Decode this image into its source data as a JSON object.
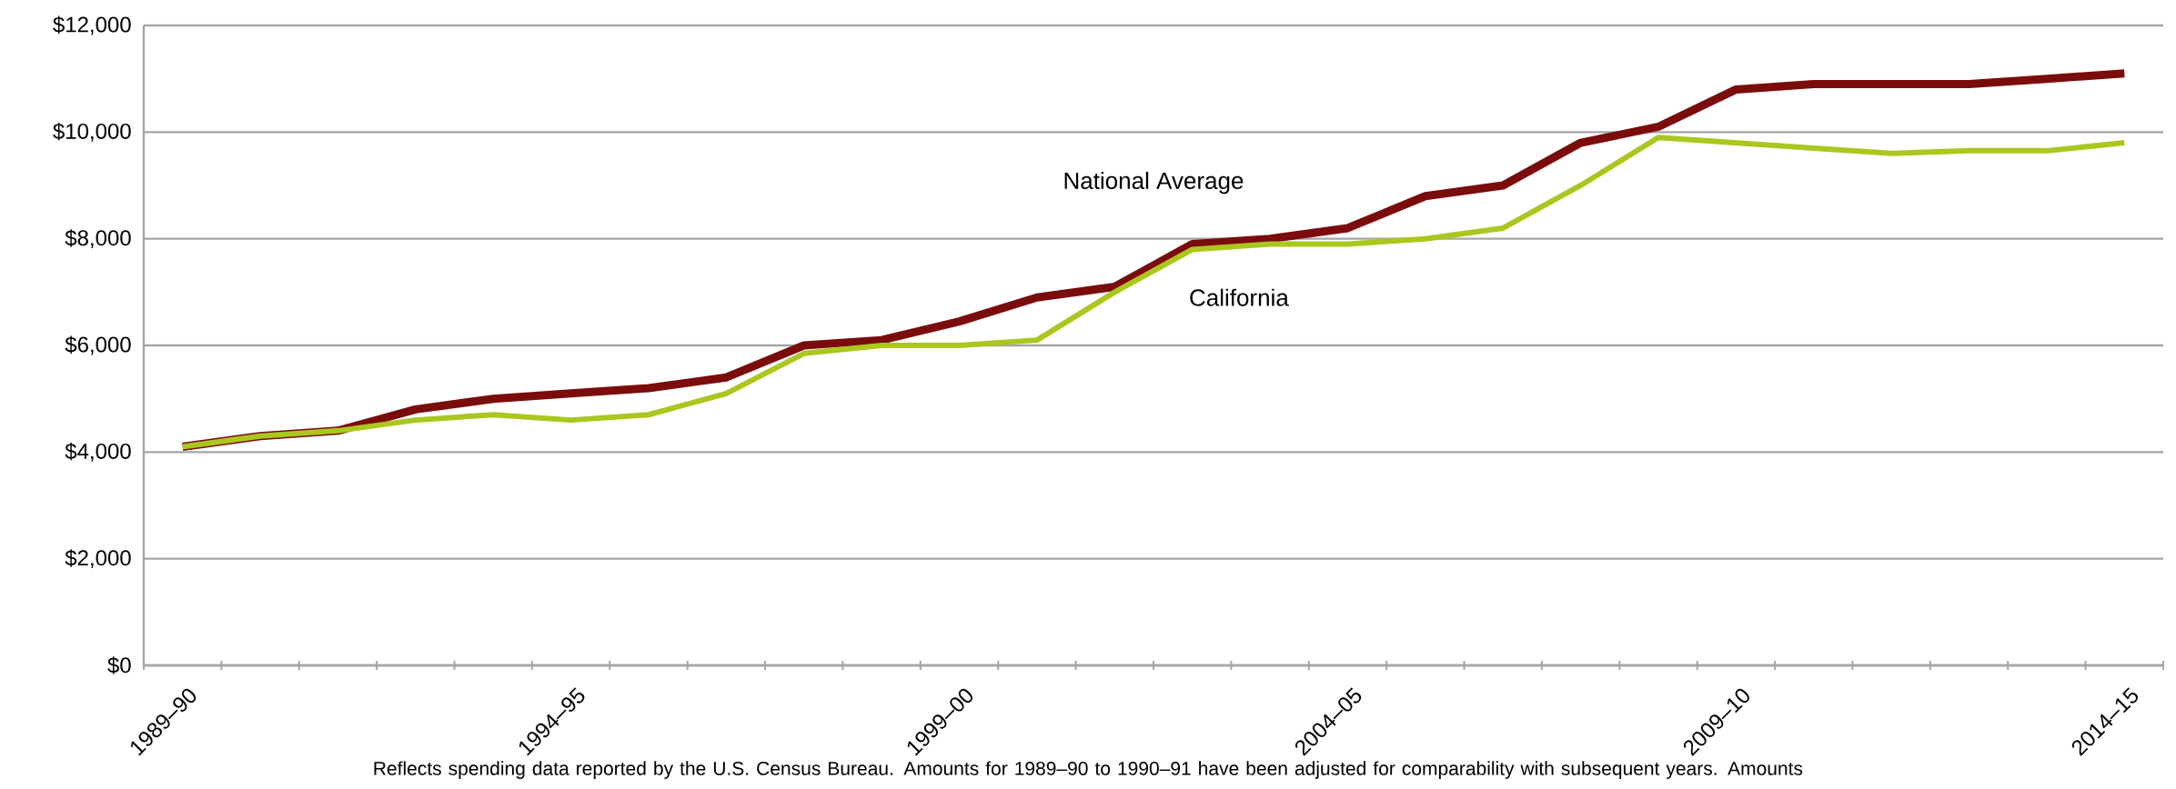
{
  "chart_data": {
    "type": "line",
    "categories": [
      "1989–90",
      null,
      null,
      null,
      null,
      "1994–95",
      null,
      null,
      null,
      null,
      "1999–00",
      null,
      null,
      null,
      null,
      "2004–05",
      null,
      null,
      null,
      null,
      "2009–10",
      null,
      null,
      null,
      null,
      "2014–15"
    ],
    "series": [
      {
        "name": "National Average",
        "color": "#7b0c0c",
        "values": [
          4100,
          4300,
          4400,
          4800,
          5000,
          5100,
          5200,
          5400,
          6000,
          6100,
          6450,
          6900,
          7100,
          7900,
          8000,
          8200,
          8800,
          9000,
          9800,
          10100,
          10800,
          10900,
          10900,
          10900,
          11000,
          11100
        ]
      },
      {
        "name": "California",
        "color": "#a8c81e",
        "values": [
          4100,
          4300,
          4400,
          4600,
          4700,
          4600,
          4700,
          5100,
          5850,
          6000,
          6000,
          6100,
          7000,
          7800,
          7900,
          7900,
          8000,
          8200,
          9000,
          9900,
          9800,
          9700,
          9600,
          9650,
          9650,
          9800
        ]
      }
    ],
    "ylim": [
      0,
      12000
    ],
    "yticks": [
      {
        "value": 0,
        "label": "$0"
      },
      {
        "value": 2000,
        "label": "$2,000"
      },
      {
        "value": 4000,
        "label": "$4,000"
      },
      {
        "value": 6000,
        "label": "$6,000"
      },
      {
        "value": 8000,
        "label": "$8,000"
      },
      {
        "value": 10000,
        "label": "$10,000"
      },
      {
        "value": 12000,
        "label": "$12,000"
      }
    ],
    "grid": "y",
    "legend": false,
    "marker": "none",
    "line_style": "solid",
    "annotations": [
      "Reflects spending data reported by the U.S. Census Bureau. Amounts for 1989–90 to 1990–91 have been adjusted for comparability with subsequent years. Amounts"
    ]
  }
}
